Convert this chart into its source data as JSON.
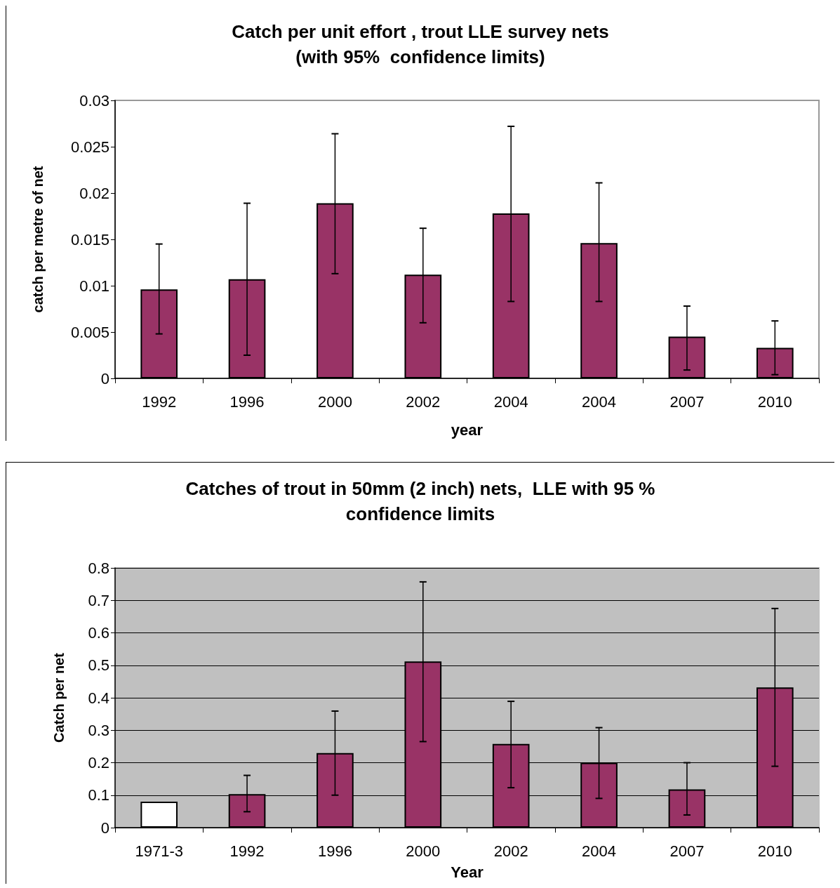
{
  "chart_data": [
    {
      "type": "bar",
      "title": "Catch per unit effort , trout LLE survey nets\n(with 95%  confidence limits)",
      "xlabel": "year",
      "ylabel": "catch per metre of net",
      "categories": [
        "1992",
        "1996",
        "2000",
        "2002",
        "2004",
        "2004",
        "2007",
        "2010"
      ],
      "values": [
        0.0096,
        0.0107,
        0.0189,
        0.0112,
        0.0178,
        0.0146,
        0.0045,
        0.0033
      ],
      "color": "#993366",
      "errors": [
        [
          0.0048,
          0.0145
        ],
        [
          0.0025,
          0.0189
        ],
        [
          0.0113,
          0.0264
        ],
        [
          0.006,
          0.0162
        ],
        [
          0.0083,
          0.0272
        ],
        [
          0.0083,
          0.0211
        ],
        [
          0.0009,
          0.0078
        ],
        [
          0.0004,
          0.0062
        ]
      ],
      "ylim": [
        0,
        0.03
      ],
      "yticks": [
        0,
        0.005,
        0.01,
        0.015,
        0.02,
        0.025,
        0.03
      ],
      "grid": false
    },
    {
      "type": "bar",
      "title": "Catches of trout in 50mm (2 inch) nets,  LLE with 95 %\nconfidence limits",
      "xlabel": "Year",
      "ylabel": "Catch per net",
      "categories": [
        "1971-3",
        "1992",
        "1996",
        "2000",
        "2002",
        "2004",
        "2007",
        "2010"
      ],
      "values": [
        0.08,
        0.103,
        0.23,
        0.512,
        0.258,
        0.2,
        0.118,
        0.432
      ],
      "colors": [
        "#ffffff",
        "#993366",
        "#993366",
        "#993366",
        "#993366",
        "#993366",
        "#993366",
        "#993366"
      ],
      "errors": [
        null,
        [
          0.049,
          0.161
        ],
        [
          0.1,
          0.359
        ],
        [
          0.265,
          0.757
        ],
        [
          0.123,
          0.389
        ],
        [
          0.09,
          0.308
        ],
        [
          0.039,
          0.2
        ],
        [
          0.189,
          0.675
        ]
      ],
      "ylim": [
        0,
        0.8
      ],
      "yticks": [
        0,
        0.1,
        0.2,
        0.3,
        0.4,
        0.5,
        0.6,
        0.7,
        0.8
      ],
      "grid": "y"
    }
  ]
}
